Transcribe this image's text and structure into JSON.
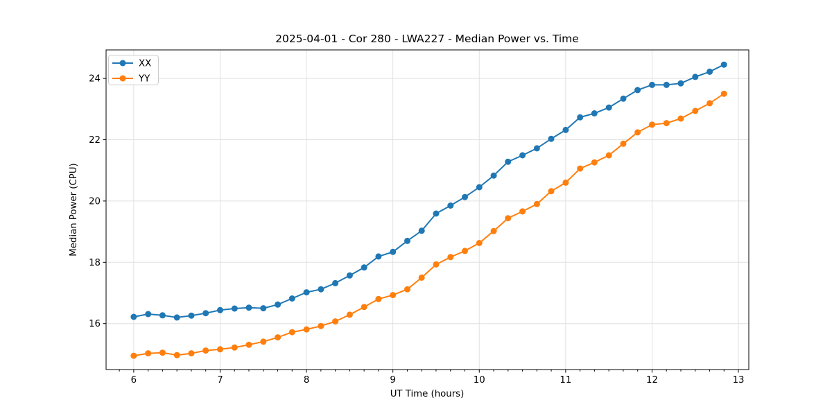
{
  "chart_data": {
    "type": "line",
    "title": "2025-04-01 - Cor 280 - LWA227 - Median Power vs. Time",
    "xlabel": "UT Time (hours)",
    "ylabel": "Median Power (CPU)",
    "xlim": [
      5.68,
      13.12
    ],
    "ylim": [
      14.5,
      24.93
    ],
    "xticks": [
      6,
      7,
      8,
      9,
      10,
      11,
      12,
      13
    ],
    "yticks": [
      16,
      18,
      20,
      22,
      24
    ],
    "x_minor_step": 0.166667,
    "grid": true,
    "grid_color": "#e0e0e0",
    "legend_position": "upper-left",
    "x": [
      6.0,
      6.167,
      6.333,
      6.5,
      6.667,
      6.833,
      7.0,
      7.167,
      7.333,
      7.5,
      7.667,
      7.833,
      8.0,
      8.167,
      8.333,
      8.5,
      8.667,
      8.833,
      9.0,
      9.167,
      9.333,
      9.5,
      9.667,
      9.833,
      10.0,
      10.167,
      10.333,
      10.5,
      10.667,
      10.833,
      11.0,
      11.167,
      11.333,
      11.5,
      11.667,
      11.833,
      12.0,
      12.167,
      12.333,
      12.5,
      12.667,
      12.833
    ],
    "series": [
      {
        "name": "XX",
        "color": "#1f77b4",
        "values": [
          16.22,
          16.31,
          16.27,
          16.2,
          16.26,
          16.34,
          16.44,
          16.49,
          16.52,
          16.5,
          16.62,
          16.82,
          17.02,
          17.12,
          17.32,
          17.57,
          17.83,
          18.19,
          18.34,
          18.7,
          19.03,
          19.59,
          19.85,
          20.13,
          20.45,
          20.83,
          21.28,
          21.49,
          21.72,
          22.03,
          22.32,
          22.73,
          22.86,
          23.05,
          23.34,
          23.62,
          23.79,
          23.79,
          23.84,
          24.05,
          24.22,
          24.45
        ]
      },
      {
        "name": "YY",
        "color": "#ff7f0e",
        "values": [
          14.95,
          15.03,
          15.05,
          14.97,
          15.03,
          15.12,
          15.16,
          15.22,
          15.31,
          15.41,
          15.55,
          15.72,
          15.81,
          15.92,
          16.07,
          16.29,
          16.54,
          16.8,
          16.93,
          17.12,
          17.5,
          17.93,
          18.17,
          18.37,
          18.63,
          19.02,
          19.44,
          19.66,
          19.9,
          20.32,
          20.6,
          21.06,
          21.26,
          21.49,
          21.87,
          22.24,
          22.49,
          22.54,
          22.69,
          22.94,
          23.19,
          23.5
        ]
      }
    ]
  }
}
